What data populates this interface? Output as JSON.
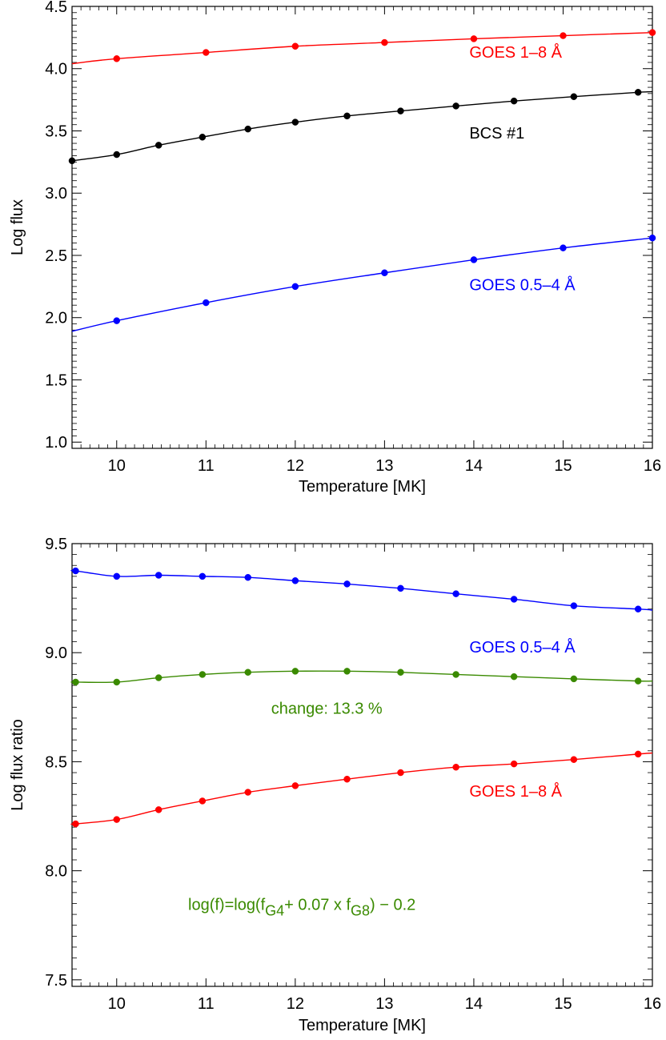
{
  "chart_data": [
    {
      "type": "line",
      "xlabel": "Temperature [MK]",
      "ylabel": "Log flux",
      "xlim": [
        9.5,
        16
      ],
      "ylim": [
        0.95,
        4.5
      ],
      "xticks": [
        "10",
        "11",
        "12",
        "13",
        "14",
        "15",
        "16"
      ],
      "yticks": [
        "1.0",
        "1.5",
        "2.0",
        "2.5",
        "3.0",
        "3.5",
        "4.0",
        "4.5"
      ],
      "grid": false,
      "series": [
        {
          "name": "GOES 1–8 Å",
          "color": "#ff0000",
          "x": [
            10,
            11,
            12,
            13,
            14,
            15,
            16
          ],
          "y": [
            4.08,
            4.13,
            4.18,
            4.21,
            4.24,
            4.265,
            4.29
          ],
          "curve_start": 4.04,
          "curve_end": 4.29
        },
        {
          "name": "BCS #1",
          "color": "#000000",
          "x": [
            9.5,
            10,
            10.47,
            10.96,
            11.47,
            12,
            12.58,
            13.18,
            13.8,
            14.45,
            15.12,
            15.84
          ],
          "y": [
            3.26,
            3.31,
            3.385,
            3.45,
            3.515,
            3.57,
            3.62,
            3.66,
            3.7,
            3.74,
            3.775,
            3.81
          ],
          "curve_start": 3.25,
          "curve_end": 3.815
        },
        {
          "name": "GOES 0.5–4 Å",
          "color": "#0000ff",
          "x": [
            10,
            11,
            12,
            13,
            14,
            15,
            16
          ],
          "y": [
            1.975,
            2.12,
            2.25,
            2.36,
            2.465,
            2.56,
            2.64
          ],
          "curve_start": 1.89,
          "curve_end": 2.64
        }
      ],
      "annotations": [
        {
          "text": "GOES 1–8 Å",
          "color": "#ff0000",
          "x": 13.95,
          "y": 4.09,
          "size": 20
        },
        {
          "text": "BCS #1",
          "color": "#000000",
          "x": 13.95,
          "y": 3.44,
          "size": 20
        },
        {
          "text": "GOES 0.5–4 Å",
          "color": "#0000ff",
          "x": 13.95,
          "y": 2.22,
          "size": 20
        }
      ]
    },
    {
      "type": "line",
      "xlabel": "Temperature [MK]",
      "ylabel": "Log flux ratio",
      "xlim": [
        9.5,
        16
      ],
      "ylim": [
        7.47,
        9.5
      ],
      "xticks": [
        "10",
        "11",
        "12",
        "13",
        "14",
        "15",
        "16"
      ],
      "yticks": [
        "7.5",
        "8.0",
        "8.5",
        "9.0",
        "9.5"
      ],
      "grid": false,
      "series": [
        {
          "name": "GOES 0.5–4 Å",
          "color": "#0000ff",
          "x": [
            9.54,
            10.0,
            10.47,
            10.96,
            11.47,
            12.0,
            12.58,
            13.18,
            13.8,
            14.45,
            15.12,
            15.84
          ],
          "y": [
            9.375,
            9.35,
            9.355,
            9.35,
            9.345,
            9.33,
            9.315,
            9.295,
            9.27,
            9.245,
            9.215,
            9.2
          ],
          "curve_start": 9.375,
          "curve_end": 9.195
        },
        {
          "name": "change: 13.3 %",
          "color": "#3a8a00",
          "x": [
            9.54,
            10.0,
            10.47,
            10.96,
            11.47,
            12.0,
            12.58,
            13.18,
            13.8,
            14.45,
            15.12,
            15.84
          ],
          "y": [
            8.865,
            8.865,
            8.885,
            8.9,
            8.91,
            8.915,
            8.915,
            8.91,
            8.9,
            8.89,
            8.88,
            8.87
          ],
          "curve_start": 8.865,
          "curve_end": 8.87
        },
        {
          "name": "GOES 1–8 Å",
          "color": "#ff0000",
          "x": [
            9.54,
            10.0,
            10.47,
            10.96,
            11.47,
            12.0,
            12.58,
            13.18,
            13.8,
            14.45,
            15.12,
            15.84
          ],
          "y": [
            8.215,
            8.235,
            8.28,
            8.32,
            8.36,
            8.39,
            8.42,
            8.45,
            8.475,
            8.49,
            8.51,
            8.535
          ],
          "curve_start": 8.215,
          "curve_end": 8.54
        }
      ],
      "annotations": [
        {
          "text": "GOES 0.5–4 Å",
          "color": "#0000ff",
          "x": 13.95,
          "y": 9.0,
          "size": 20
        },
        {
          "text": "change: 13.3 %",
          "color": "#3a8a00",
          "x": 11.73,
          "y": 8.72,
          "size": 20
        },
        {
          "text": "GOES 1–8 Å",
          "color": "#ff0000",
          "x": 13.95,
          "y": 8.34,
          "size": 20
        }
      ],
      "formula": {
        "color": "#3a8a00",
        "x": 10.8,
        "y": 7.82,
        "parts": [
          {
            "text": "log(f)=log(f"
          },
          {
            "text": "G4",
            "sub": true
          },
          {
            "text": "+ 0.07 x f"
          },
          {
            "text": "G8",
            "sub": true
          },
          {
            "text": ") − 0.2"
          }
        ]
      }
    }
  ]
}
